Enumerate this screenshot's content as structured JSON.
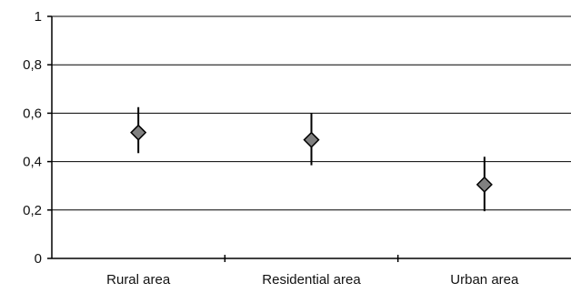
{
  "chart_data": {
    "type": "scatter",
    "categories": [
      "Rural area",
      "Residential area",
      "Urban area"
    ],
    "series": [
      {
        "values": [
          0.52,
          0.49,
          0.305
        ],
        "error_low": [
          0.435,
          0.385,
          0.195
        ],
        "error_high": [
          0.625,
          0.6,
          0.42
        ]
      }
    ],
    "yticks": [
      "0",
      "0,2",
      "0,4",
      "0,6",
      "0,8",
      "1"
    ],
    "ytick_values": [
      0,
      0.2,
      0.4,
      0.6,
      0.8,
      1
    ],
    "ylim": [
      0,
      1
    ],
    "title": "",
    "xlabel": "",
    "ylabel": "",
    "grid": "horizontal",
    "legend": "none",
    "colors": {
      "marker": "#808080",
      "line": "#000000"
    }
  }
}
